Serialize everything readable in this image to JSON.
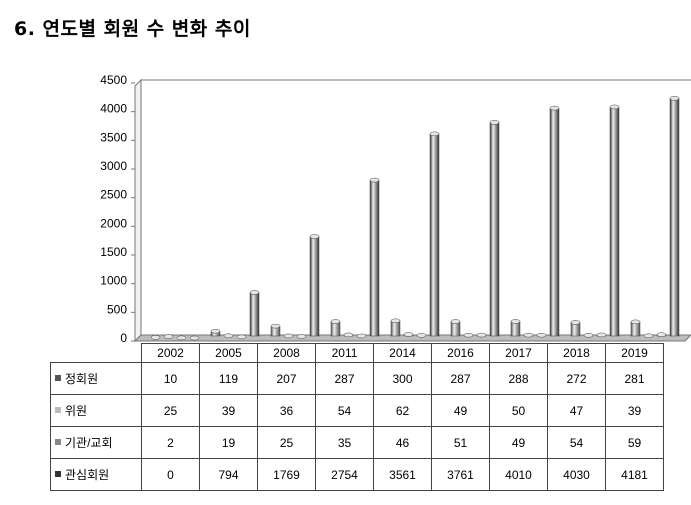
{
  "title": "6. 연도별 회원 수 변화 추이",
  "chart_data": {
    "type": "bar",
    "title": "6. 연도별 회원 수 변화 추이",
    "categories": [
      "2002",
      "2005",
      "2008",
      "2011",
      "2014",
      "2016",
      "2017",
      "2018",
      "2019"
    ],
    "series": [
      {
        "name": "정회원",
        "values": [
          10,
          119,
          207,
          287,
          300,
          287,
          288,
          272,
          281
        ],
        "color": "#555555"
      },
      {
        "name": "위원",
        "values": [
          25,
          39,
          36,
          54,
          62,
          49,
          50,
          47,
          39
        ],
        "color": "#bbbbbb"
      },
      {
        "name": "기관/교회",
        "values": [
          2,
          19,
          25,
          35,
          46,
          51,
          49,
          54,
          59
        ],
        "color": "#888888"
      },
      {
        "name": "관심회원",
        "values": [
          0,
          794,
          1769,
          2754,
          3561,
          3761,
          4010,
          4030,
          4181
        ],
        "color": "#333333"
      }
    ],
    "ylim": [
      0,
      4500
    ],
    "yticks": [
      "4500",
      "4000",
      "3500",
      "3000",
      "2500",
      "2000",
      "1500",
      "1000",
      "500",
      "0"
    ],
    "grid": false,
    "legend": "data-table-below"
  }
}
